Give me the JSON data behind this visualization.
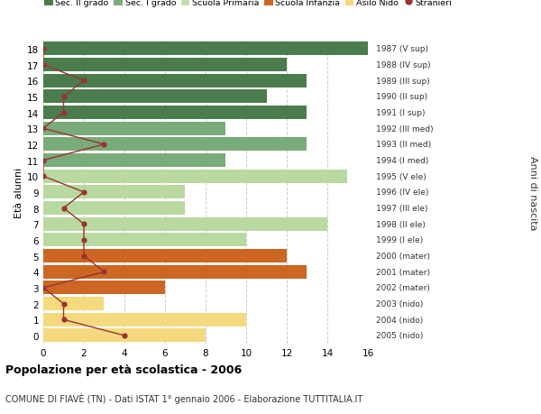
{
  "ages": [
    18,
    17,
    16,
    15,
    14,
    13,
    12,
    11,
    10,
    9,
    8,
    7,
    6,
    5,
    4,
    3,
    2,
    1,
    0
  ],
  "bar_values": [
    16,
    12,
    13,
    11,
    13,
    9,
    13,
    9,
    15,
    7,
    7,
    14,
    10,
    12,
    13,
    6,
    3,
    10,
    8
  ],
  "stranieri": [
    0,
    0,
    2,
    1,
    1,
    0,
    3,
    0,
    0,
    2,
    1,
    2,
    2,
    2,
    3,
    0,
    1,
    1,
    4
  ],
  "right_labels": [
    "1987 (V sup)",
    "1988 (IV sup)",
    "1989 (III sup)",
    "1990 (II sup)",
    "1991 (I sup)",
    "1992 (III med)",
    "1993 (II med)",
    "1994 (I med)",
    "1995 (V ele)",
    "1996 (IV ele)",
    "1997 (III ele)",
    "1998 (II ele)",
    "1999 (I ele)",
    "2000 (mater)",
    "2001 (mater)",
    "2002 (mater)",
    "2003 (nido)",
    "2004 (nido)",
    "2005 (nido)"
  ],
  "bar_colors": [
    "#4a7c4e",
    "#4a7c4e",
    "#4a7c4e",
    "#4a7c4e",
    "#4a7c4e",
    "#7aab7a",
    "#7aab7a",
    "#7aab7a",
    "#b8d9a0",
    "#b8d9a0",
    "#b8d9a0",
    "#b8d9a0",
    "#b8d9a0",
    "#cc6622",
    "#cc6622",
    "#cc6622",
    "#f5d97e",
    "#f5d97e",
    "#f5d97e"
  ],
  "legend_colors": [
    "#4a7c4e",
    "#7aab7a",
    "#c8ddb0",
    "#cc6622",
    "#f5d97e",
    "#993333"
  ],
  "legend_labels": [
    "Sec. II grado",
    "Sec. I grado",
    "Scuola Primaria",
    "Scuola Infanzia",
    "Asilo Nido",
    "Stranieri"
  ],
  "ylabel_left": "Età alunni",
  "ylabel_right": "Anni di nascita",
  "xlim": [
    0,
    16
  ],
  "title_line1": "Popolazione per età scolastica - 2006",
  "title_line2": "COMUNE DI FIAVÈ (TN) - Dati ISTAT 1° gennaio 2006 - Elaborazione TUTTITALIA.IT",
  "background_color": "#ffffff",
  "grid_color": "#cccccc",
  "stranieri_color": "#993333",
  "bar_edge_color": "none"
}
